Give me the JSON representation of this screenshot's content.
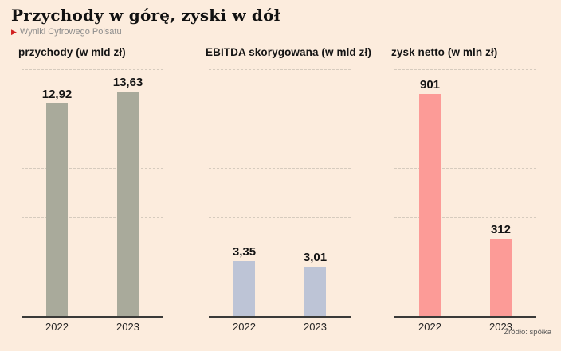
{
  "page": {
    "title": "Przychody w górę, zyski w dół",
    "subtitle": "Wyniki Cyfrowego Polsatu",
    "source": "Źródło: spółka"
  },
  "colors": {
    "background": "#fcecdd",
    "accent_red": "#d11f1f",
    "gridline": "#d6cbbe",
    "axis": "#3a3a38",
    "revenue_bar": "#a9aa9b",
    "ebitda_bar": "#bdc4d6",
    "net_profit_bar": "#fc9b97"
  },
  "chart_data": [
    {
      "type": "bar",
      "title": "przychody (w mld zł)",
      "categories": [
        "2022",
        "2023"
      ],
      "values": [
        12.92,
        13.63
      ],
      "value_labels": [
        "12,92",
        "13,63"
      ],
      "ylim": [
        0,
        15
      ],
      "gridline_step": 3,
      "grid": true,
      "legend": "none",
      "bar_color": "#a9aa9b"
    },
    {
      "type": "bar",
      "title": "EBITDA skorygowana (w mld zł)",
      "categories": [
        "2022",
        "2023"
      ],
      "values": [
        3.35,
        3.01
      ],
      "value_labels": [
        "3,35",
        "3,01"
      ],
      "ylim": [
        0,
        15
      ],
      "gridline_step": 3,
      "grid": true,
      "legend": "none",
      "bar_color": "#bdc4d6"
    },
    {
      "type": "bar",
      "title": "zysk netto (w mln zł)",
      "categories": [
        "2022",
        "2023"
      ],
      "values": [
        901,
        312
      ],
      "value_labels": [
        "901",
        "312"
      ],
      "ylim": [
        0,
        1000
      ],
      "gridline_step": 200,
      "grid": true,
      "legend": "none",
      "bar_color": "#fc9b97"
    }
  ]
}
